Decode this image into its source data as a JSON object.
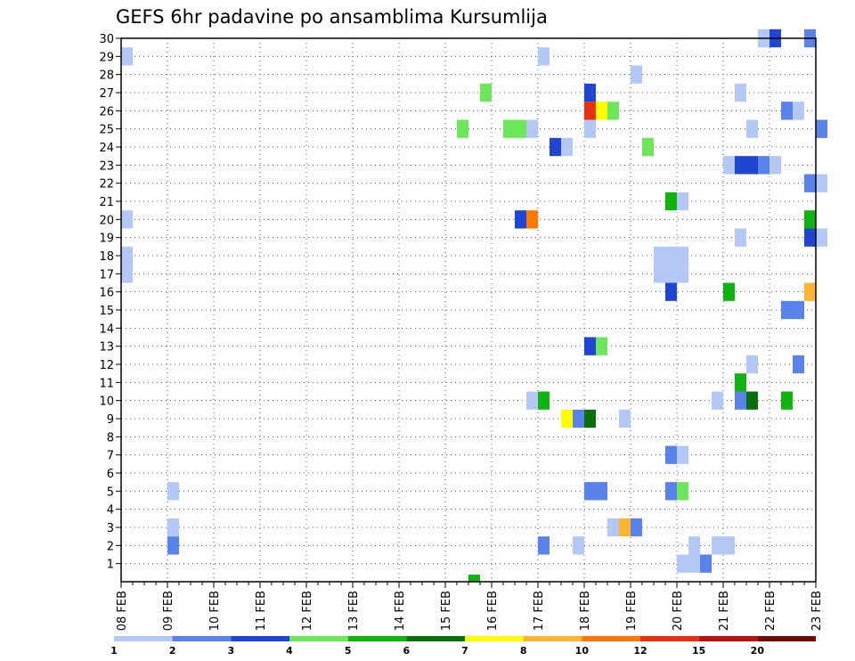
{
  "chart_data": {
    "type": "heatmap",
    "title": "GEFS 6hr padavine po ansamblima Kursumlija",
    "y_ticks": [
      "1",
      "2",
      "3",
      "4",
      "5",
      "6",
      "7",
      "8",
      "9",
      "10",
      "11",
      "12",
      "13",
      "14",
      "15",
      "16",
      "17",
      "18",
      "19",
      "20",
      "21",
      "22",
      "23",
      "24",
      "25",
      "26",
      "27",
      "28",
      "29",
      "30"
    ],
    "x_ticks": [
      "08 FEB",
      "09 FEB",
      "10 FEB",
      "11 FEB",
      "12 FEB",
      "13 FEB",
      "14 FEB",
      "15 FEB",
      "16 FEB",
      "17 FEB",
      "18 FEB",
      "19 FEB",
      "20 FEB",
      "21 FEB",
      "22 FEB",
      "23 FEB"
    ],
    "x_range": [
      "08 FEB 00Z",
      "23 FEB 00Z"
    ],
    "y_range": [
      0,
      30
    ],
    "steps_per_day": 4,
    "grid": true,
    "legend": {
      "placement": "bottom",
      "labels": [
        "1",
        "2",
        "3",
        "4",
        "5",
        "6",
        "7",
        "8",
        "10",
        "12",
        "15",
        "20"
      ],
      "colors": [
        "#b4c8f5",
        "#5a82eb",
        "#1e46d2",
        "#6ee65a",
        "#0fb40f",
        "#0a6e0a",
        "#ffff00",
        "#ffb432",
        "#ff7800",
        "#e63214",
        "#b41414",
        "#6e0a0a"
      ]
    },
    "cells": [
      {
        "member": 30,
        "cells": [
          {
            "start": 55,
            "value": 1
          },
          {
            "start": 56,
            "value": 3
          },
          {
            "start": 59,
            "value": 2
          }
        ]
      },
      {
        "member": 29,
        "cells": [
          {
            "start": 0,
            "value": 1
          },
          {
            "start": 36,
            "value": 1
          }
        ]
      },
      {
        "member": 28,
        "cells": [
          {
            "start": 44,
            "value": 1
          }
        ]
      },
      {
        "member": 27,
        "cells": [
          {
            "start": 31,
            "value": 4
          },
          {
            "start": 40,
            "value": 3
          },
          {
            "start": 53,
            "value": 1
          }
        ]
      },
      {
        "member": 26,
        "cells": [
          {
            "start": 40,
            "value": 12
          },
          {
            "start": 41,
            "value": 7
          },
          {
            "start": 42,
            "value": 4
          },
          {
            "start": 57,
            "value": 2
          },
          {
            "start": 58,
            "value": 1
          }
        ]
      },
      {
        "member": 25,
        "cells": [
          {
            "start": 29,
            "value": 4
          },
          {
            "start": 33,
            "value": 4
          },
          {
            "start": 34,
            "value": 4
          },
          {
            "start": 35,
            "value": 1
          },
          {
            "start": 40,
            "value": 1
          },
          {
            "start": 54,
            "value": 1
          },
          {
            "start": 60,
            "value": 2
          }
        ]
      },
      {
        "member": 24,
        "cells": [
          {
            "start": 37,
            "value": 3
          },
          {
            "start": 38,
            "value": 1
          },
          {
            "start": 45,
            "value": 4
          }
        ]
      },
      {
        "member": 23,
        "cells": [
          {
            "start": 52,
            "value": 1
          },
          {
            "start": 53,
            "value": 3
          },
          {
            "start": 54,
            "value": 3
          },
          {
            "start": 55,
            "value": 2
          },
          {
            "start": 56,
            "value": 1
          }
        ]
      },
      {
        "member": 22,
        "cells": [
          {
            "start": 59,
            "value": 2
          },
          {
            "start": 60,
            "value": 1
          }
        ]
      },
      {
        "member": 21,
        "cells": [
          {
            "start": 47,
            "value": 5
          },
          {
            "start": 48,
            "value": 1
          }
        ]
      },
      {
        "member": 20,
        "cells": [
          {
            "start": 0,
            "value": 1
          },
          {
            "start": 34,
            "value": 3
          },
          {
            "start": 35,
            "value": 10
          },
          {
            "start": 59,
            "value": 5
          }
        ]
      },
      {
        "member": 19,
        "cells": [
          {
            "start": 53,
            "value": 1
          },
          {
            "start": 59,
            "value": 3
          },
          {
            "start": 60,
            "value": 1
          }
        ]
      },
      {
        "member": 18,
        "cells": [
          {
            "start": 0,
            "value": 1
          },
          {
            "start": 46,
            "value": 1
          },
          {
            "start": 47,
            "value": 1
          },
          {
            "start": 48,
            "value": 1
          }
        ]
      },
      {
        "member": 17,
        "cells": [
          {
            "start": 0,
            "value": 1
          },
          {
            "start": 46,
            "value": 1
          },
          {
            "start": 47,
            "value": 1
          },
          {
            "start": 48,
            "value": 1
          }
        ]
      },
      {
        "member": 16,
        "cells": [
          {
            "start": 47,
            "value": 3
          },
          {
            "start": 52,
            "value": 5
          },
          {
            "start": 59,
            "value": 8
          }
        ]
      },
      {
        "member": 15,
        "cells": [
          {
            "start": 57,
            "value": 2
          },
          {
            "start": 58,
            "value": 2
          }
        ]
      },
      {
        "member": 13,
        "cells": [
          {
            "start": 40,
            "value": 3
          },
          {
            "start": 41,
            "value": 4
          }
        ]
      },
      {
        "member": 12,
        "cells": [
          {
            "start": 54,
            "value": 1
          },
          {
            "start": 58,
            "value": 2
          }
        ]
      },
      {
        "member": 11,
        "cells": [
          {
            "start": 53,
            "value": 5
          }
        ]
      },
      {
        "member": 10,
        "cells": [
          {
            "start": 35,
            "value": 1
          },
          {
            "start": 36,
            "value": 5
          },
          {
            "start": 51,
            "value": 1
          },
          {
            "start": 53,
            "value": 2
          },
          {
            "start": 54,
            "value": 6
          },
          {
            "start": 57,
            "value": 5
          }
        ]
      },
      {
        "member": 9,
        "cells": [
          {
            "start": 38,
            "value": 7
          },
          {
            "start": 39,
            "value": 2
          },
          {
            "start": 40,
            "value": 6
          },
          {
            "start": 43,
            "value": 1
          }
        ]
      },
      {
        "member": 7,
        "cells": [
          {
            "start": 47,
            "value": 2
          },
          {
            "start": 48,
            "value": 1
          }
        ]
      },
      {
        "member": 5,
        "cells": [
          {
            "start": 4,
            "value": 1
          },
          {
            "start": 40,
            "value": 2
          },
          {
            "start": 41,
            "value": 2
          },
          {
            "start": 47,
            "value": 2
          },
          {
            "start": 48,
            "value": 4
          }
        ]
      },
      {
        "member": 3,
        "cells": [
          {
            "start": 4,
            "value": 1
          },
          {
            "start": 42,
            "value": 1
          },
          {
            "start": 43,
            "value": 8
          },
          {
            "start": 44,
            "value": 2
          }
        ]
      },
      {
        "member": 2,
        "cells": [
          {
            "start": 4,
            "value": 2
          },
          {
            "start": 36,
            "value": 2
          },
          {
            "start": 39,
            "value": 1
          },
          {
            "start": 49,
            "value": 1
          },
          {
            "start": 51,
            "value": 1
          },
          {
            "start": 52,
            "value": 1
          }
        ]
      },
      {
        "member": 1,
        "cells": [
          {
            "start": 48,
            "value": 1
          },
          {
            "start": 49,
            "value": 1
          },
          {
            "start": 50,
            "value": 2
          }
        ]
      },
      {
        "member": 0,
        "cells": [
          {
            "start": 30,
            "value": 5
          }
        ]
      }
    ]
  }
}
